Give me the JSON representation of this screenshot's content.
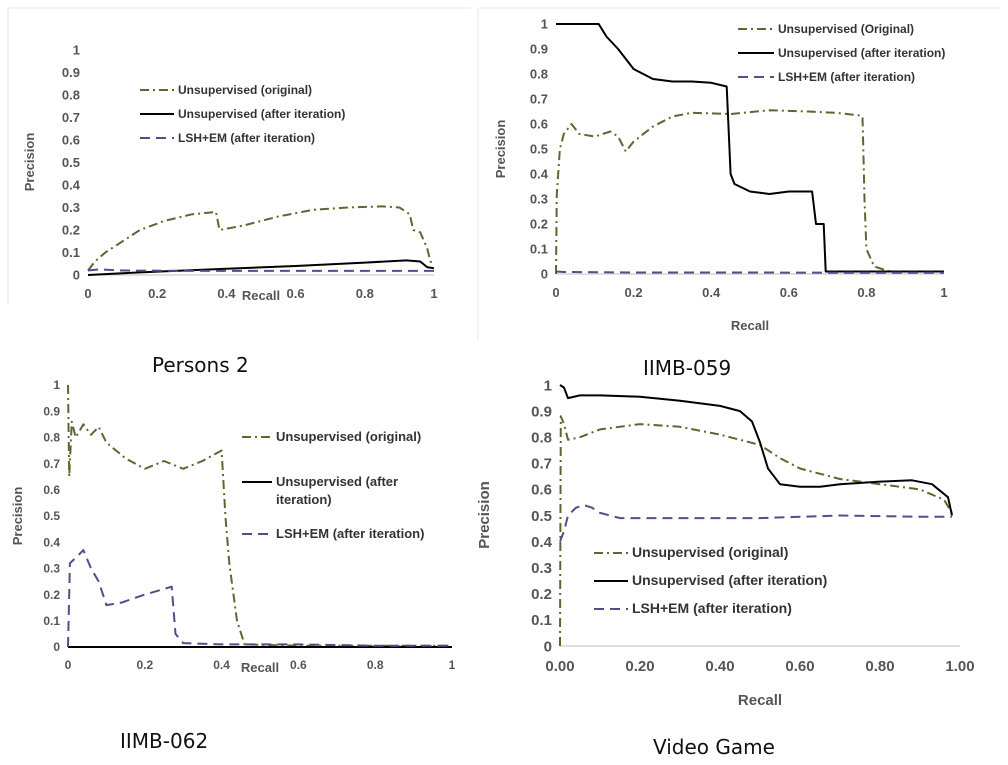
{
  "chart_data": [
    {
      "type": "line",
      "title": "Persons 2",
      "xlabel": "Recall",
      "ylabel": "Precision",
      "xlim": [
        0,
        1
      ],
      "ylim": [
        0,
        1
      ],
      "xticks": [
        "0",
        "0.2",
        "0.4",
        "0.6",
        "0.8",
        "1"
      ],
      "yticks": [
        "0",
        "0.1",
        "0.2",
        "0.3",
        "0.4",
        "0.5",
        "0.6",
        "0.7",
        "0.8",
        "0.9",
        "1"
      ],
      "legend_position": "upper-middle",
      "grid": false,
      "series": [
        {
          "name": "Unsupervised (original)",
          "color": "#556b2f",
          "dash": "dashdot",
          "points": [
            [
              0,
              0.02
            ],
            [
              0.02,
              0.06
            ],
            [
              0.05,
              0.1
            ],
            [
              0.1,
              0.15
            ],
            [
              0.15,
              0.2
            ],
            [
              0.22,
              0.24
            ],
            [
              0.3,
              0.27
            ],
            [
              0.37,
              0.28
            ],
            [
              0.38,
              0.2
            ],
            [
              0.45,
              0.22
            ],
            [
              0.55,
              0.26
            ],
            [
              0.65,
              0.29
            ],
            [
              0.75,
              0.3
            ],
            [
              0.85,
              0.305
            ],
            [
              0.9,
              0.3
            ],
            [
              0.93,
              0.27
            ],
            [
              0.94,
              0.2
            ],
            [
              0.96,
              0.19
            ],
            [
              0.98,
              0.12
            ],
            [
              0.99,
              0.06
            ],
            [
              1,
              0.05
            ]
          ]
        },
        {
          "name": "Unsupervised (after iteration)",
          "color": "#000000",
          "dash": "solid",
          "points": [
            [
              0,
              0
            ],
            [
              0.1,
              0.008
            ],
            [
              0.2,
              0.015
            ],
            [
              0.4,
              0.028
            ],
            [
              0.6,
              0.04
            ],
            [
              0.8,
              0.055
            ],
            [
              0.92,
              0.065
            ],
            [
              0.96,
              0.06
            ],
            [
              0.98,
              0.035
            ],
            [
              1,
              0.03
            ]
          ]
        },
        {
          "name": "LSH+EM (after iteration)",
          "color": "#5b4a8a",
          "dash": "dash",
          "points": [
            [
              0,
              0.02
            ],
            [
              0.03,
              0.025
            ],
            [
              0.1,
              0.02
            ],
            [
              0.3,
              0.018
            ],
            [
              0.6,
              0.018
            ],
            [
              0.9,
              0.018
            ],
            [
              1,
              0.018
            ]
          ]
        }
      ]
    },
    {
      "type": "line",
      "title": "IIMB-059",
      "xlabel": "Recall",
      "ylabel": "Precision",
      "xlim": [
        0,
        1
      ],
      "ylim": [
        0,
        1
      ],
      "xticks": [
        "0",
        "0.2",
        "0.4",
        "0.6",
        "0.8",
        "1"
      ],
      "yticks": [
        "0",
        "0.1",
        "0.2",
        "0.3",
        "0.4",
        "0.5",
        "0.6",
        "0.7",
        "0.8",
        "0.9",
        "1"
      ],
      "legend_position": "top-right",
      "grid": false,
      "series": [
        {
          "name": "Unsupervised (Original)",
          "color": "#556b2f",
          "dash": "dashdot",
          "points": [
            [
              0,
              0.0
            ],
            [
              0.002,
              0.32
            ],
            [
              0.01,
              0.5
            ],
            [
              0.02,
              0.56
            ],
            [
              0.04,
              0.6
            ],
            [
              0.06,
              0.56
            ],
            [
              0.1,
              0.55
            ],
            [
              0.14,
              0.57
            ],
            [
              0.16,
              0.55
            ],
            [
              0.18,
              0.49
            ],
            [
              0.2,
              0.53
            ],
            [
              0.25,
              0.59
            ],
            [
              0.3,
              0.63
            ],
            [
              0.35,
              0.645
            ],
            [
              0.45,
              0.64
            ],
            [
              0.55,
              0.655
            ],
            [
              0.65,
              0.65
            ],
            [
              0.72,
              0.645
            ],
            [
              0.78,
              0.635
            ],
            [
              0.79,
              0.63
            ],
            [
              0.795,
              0.3
            ],
            [
              0.8,
              0.1
            ],
            [
              0.82,
              0.03
            ],
            [
              0.86,
              0.01
            ],
            [
              1,
              0.01
            ]
          ]
        },
        {
          "name": "Unsupervised (after iteration)",
          "color": "#000000",
          "dash": "solid",
          "points": [
            [
              0,
              1
            ],
            [
              0.11,
              1
            ],
            [
              0.13,
              0.95
            ],
            [
              0.16,
              0.9
            ],
            [
              0.2,
              0.82
            ],
            [
              0.25,
              0.78
            ],
            [
              0.3,
              0.77
            ],
            [
              0.35,
              0.77
            ],
            [
              0.4,
              0.765
            ],
            [
              0.44,
              0.75
            ],
            [
              0.45,
              0.4
            ],
            [
              0.46,
              0.36
            ],
            [
              0.5,
              0.33
            ],
            [
              0.55,
              0.32
            ],
            [
              0.6,
              0.33
            ],
            [
              0.66,
              0.33
            ],
            [
              0.67,
              0.2
            ],
            [
              0.69,
              0.2
            ],
            [
              0.695,
              0.01
            ],
            [
              0.8,
              0.01
            ],
            [
              1,
              0.01
            ]
          ]
        },
        {
          "name": "LSH+EM (after iteration)",
          "color": "#5b4a8a",
          "dash": "dash",
          "points": [
            [
              0,
              0.01
            ],
            [
              0.02,
              0.008
            ],
            [
              0.2,
              0.006
            ],
            [
              0.5,
              0.006
            ],
            [
              0.8,
              0.005
            ],
            [
              1,
              0.005
            ]
          ]
        }
      ]
    },
    {
      "type": "line",
      "title": "IIMB-062",
      "xlabel": "Recall",
      "ylabel": "Precision",
      "xlim": [
        0,
        1
      ],
      "ylim": [
        0,
        1
      ],
      "xticks": [
        "0",
        "0.2",
        "0.4",
        "0.6",
        "0.8",
        "1"
      ],
      "yticks": [
        "0",
        "0.1",
        "0.2",
        "0.3",
        "0.4",
        "0.5",
        "0.6",
        "0.7",
        "0.8",
        "0.9",
        "1"
      ],
      "legend_position": "right",
      "grid": false,
      "series": [
        {
          "name": "Unsupervised (original)",
          "color": "#556b2f",
          "dash": "dashdot",
          "points": [
            [
              0,
              1.0
            ],
            [
              0.003,
              0.65
            ],
            [
              0.01,
              0.86
            ],
            [
              0.02,
              0.8
            ],
            [
              0.04,
              0.85
            ],
            [
              0.06,
              0.81
            ],
            [
              0.08,
              0.84
            ],
            [
              0.1,
              0.78
            ],
            [
              0.15,
              0.72
            ],
            [
              0.2,
              0.68
            ],
            [
              0.25,
              0.71
            ],
            [
              0.3,
              0.68
            ],
            [
              0.35,
              0.71
            ],
            [
              0.4,
              0.75
            ],
            [
              0.41,
              0.5
            ],
            [
              0.42,
              0.32
            ],
            [
              0.44,
              0.1
            ],
            [
              0.46,
              0.01
            ],
            [
              0.6,
              0.005
            ],
            [
              1,
              0.005
            ]
          ]
        },
        {
          "name": "Unsupervised (after iteration)",
          "color": "#000000",
          "dash": "solid",
          "points": [
            [
              0,
              0
            ],
            [
              0.3,
              0
            ],
            [
              0.8,
              0
            ],
            [
              1,
              0
            ]
          ]
        },
        {
          "name": "LSH+EM (after iteration)",
          "color": "#5b4a8a",
          "dash": "dash",
          "points": [
            [
              0,
              0.0
            ],
            [
              0.005,
              0.32
            ],
            [
              0.02,
              0.34
            ],
            [
              0.04,
              0.37
            ],
            [
              0.06,
              0.3
            ],
            [
              0.08,
              0.25
            ],
            [
              0.1,
              0.16
            ],
            [
              0.14,
              0.17
            ],
            [
              0.2,
              0.2
            ],
            [
              0.27,
              0.23
            ],
            [
              0.28,
              0.05
            ],
            [
              0.3,
              0.015
            ],
            [
              0.4,
              0.01
            ],
            [
              0.6,
              0.01
            ],
            [
              0.8,
              0.005
            ],
            [
              1,
              0.005
            ]
          ]
        }
      ]
    },
    {
      "type": "line",
      "title": "Video Game",
      "xlabel": "Recall",
      "ylabel": "Precision",
      "xlim": [
        0,
        1
      ],
      "ylim": [
        0,
        1
      ],
      "xticks": [
        "0.00",
        "0.20",
        "0.40",
        "0.60",
        "0.80",
        "1.00"
      ],
      "yticks": [
        "0",
        "0.1",
        "0.2",
        "0.3",
        "0.4",
        "0.5",
        "0.6",
        "0.7",
        "0.8",
        "0.9",
        "1"
      ],
      "legend_position": "lower-left",
      "grid": false,
      "series": [
        {
          "name": "Unsupervised (original)",
          "color": "#556b2f",
          "dash": "dashdot",
          "points": [
            [
              0,
              0.0
            ],
            [
              0.002,
              0.88
            ],
            [
              0.01,
              0.85
            ],
            [
              0.02,
              0.79
            ],
            [
              0.05,
              0.8
            ],
            [
              0.1,
              0.83
            ],
            [
              0.2,
              0.85
            ],
            [
              0.3,
              0.84
            ],
            [
              0.4,
              0.81
            ],
            [
              0.5,
              0.77
            ],
            [
              0.55,
              0.72
            ],
            [
              0.6,
              0.68
            ],
            [
              0.7,
              0.64
            ],
            [
              0.8,
              0.62
            ],
            [
              0.9,
              0.6
            ],
            [
              0.96,
              0.56
            ],
            [
              0.98,
              0.51
            ]
          ]
        },
        {
          "name": "Unsupervised (after iteration)",
          "color": "#000000",
          "dash": "solid",
          "points": [
            [
              0,
              1.0
            ],
            [
              0.01,
              0.99
            ],
            [
              0.02,
              0.95
            ],
            [
              0.05,
              0.96
            ],
            [
              0.1,
              0.96
            ],
            [
              0.2,
              0.955
            ],
            [
              0.3,
              0.94
            ],
            [
              0.4,
              0.92
            ],
            [
              0.45,
              0.9
            ],
            [
              0.48,
              0.86
            ],
            [
              0.5,
              0.78
            ],
            [
              0.52,
              0.68
            ],
            [
              0.55,
              0.62
            ],
            [
              0.6,
              0.61
            ],
            [
              0.65,
              0.61
            ],
            [
              0.7,
              0.62
            ],
            [
              0.8,
              0.63
            ],
            [
              0.88,
              0.635
            ],
            [
              0.93,
              0.62
            ],
            [
              0.97,
              0.57
            ],
            [
              0.98,
              0.5
            ]
          ]
        },
        {
          "name": "LSH+EM (after iteration)",
          "color": "#5b4a8a",
          "dash": "dash",
          "points": [
            [
              0,
              0.4
            ],
            [
              0.01,
              0.44
            ],
            [
              0.02,
              0.5
            ],
            [
              0.04,
              0.53
            ],
            [
              0.06,
              0.54
            ],
            [
              0.08,
              0.53
            ],
            [
              0.1,
              0.51
            ],
            [
              0.15,
              0.49
            ],
            [
              0.2,
              0.49
            ],
            [
              0.3,
              0.49
            ],
            [
              0.5,
              0.49
            ],
            [
              0.7,
              0.5
            ],
            [
              0.9,
              0.495
            ],
            [
              0.98,
              0.495
            ]
          ]
        }
      ]
    }
  ]
}
